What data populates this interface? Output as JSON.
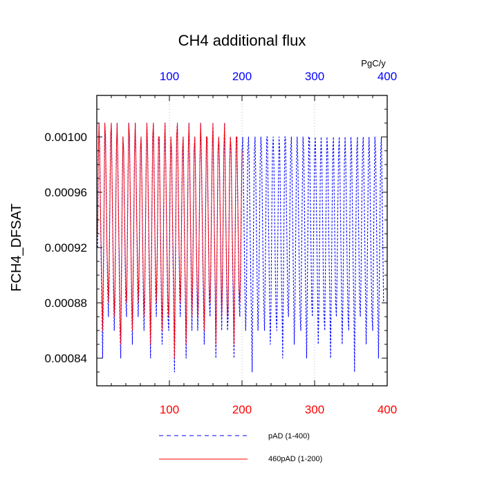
{
  "chart_data": {
    "type": "line",
    "title": "CH4 additional flux",
    "ylabel": "FCH4_DFSAT",
    "units": "PgC/y",
    "xlim": [
      0,
      400
    ],
    "ylim": [
      0.00082,
      0.00103
    ],
    "x_ticks_bottom": [
      "100",
      "200",
      "300",
      "400"
    ],
    "x_ticks_top": [
      "100",
      "200",
      "300",
      "400"
    ],
    "y_ticks": [
      "0.00084",
      "0.00088",
      "0.00092",
      "0.00096",
      "0.00100"
    ],
    "grid": "dotted vertical",
    "legend_placement": "below",
    "colors": {
      "bottom_axis": "#ff0000",
      "top_axis": "#0000ff",
      "series_pAD": "#0000ff",
      "series_460pAD": "#ff0000"
    },
    "series": [
      {
        "name": "pAD (1-400)",
        "style": "dashed",
        "color": "#0000ff",
        "x_start": 1,
        "x_step": 1,
        "values": [
          0.00092,
          0.00098,
          0.00101,
          0.00099,
          0.00095,
          0.00091,
          0.00088,
          0.00084,
          0.00089,
          0.00095,
          0.00101,
          0.001,
          0.00096,
          0.00092,
          0.00089,
          0.00087,
          0.0009,
          0.00095,
          0.001,
          0.00101,
          0.00097,
          0.00093,
          0.00089,
          0.00086,
          0.00088,
          0.00094,
          0.00099,
          0.00101,
          0.00098,
          0.00094,
          0.0009,
          0.00086,
          0.00084,
          0.0009,
          0.00096,
          0.001,
          0.00099,
          0.00095,
          0.00091,
          0.00088,
          0.00087,
          0.00092,
          0.00097,
          0.00101,
          0.001,
          0.00096,
          0.00092,
          0.00088,
          0.00085,
          0.00089,
          0.00094,
          0.00099,
          0.00101,
          0.00098,
          0.00094,
          0.0009,
          0.00087,
          0.00089,
          0.00094,
          0.00099,
          0.001,
          0.00097,
          0.00093,
          0.00089,
          0.00086,
          0.00088,
          0.00093,
          0.00098,
          0.00101,
          0.00099,
          0.00095,
          0.00091,
          0.00088,
          0.00084,
          0.00089,
          0.00095,
          0.001,
          0.00101,
          0.00097,
          0.00093,
          0.00089,
          0.00087,
          0.0009,
          0.00095,
          0.001,
          0.001,
          0.00096,
          0.00092,
          0.00088,
          0.00085,
          0.00088,
          0.00094,
          0.00099,
          0.00101,
          0.00098,
          0.00094,
          0.0009,
          0.00087,
          0.00086,
          0.00091,
          0.00097,
          0.001,
          0.00099,
          0.00095,
          0.00091,
          0.00088,
          0.00083,
          0.00089,
          0.00095,
          0.001,
          0.00101,
          0.00097,
          0.00093,
          0.00089,
          0.00087,
          0.0009,
          0.00095,
          0.00099,
          0.001,
          0.00096,
          0.00092,
          0.00088,
          0.00084,
          0.00088,
          0.00094,
          0.00099,
          0.00101,
          0.00098,
          0.00094,
          0.0009,
          0.00086,
          0.00089,
          0.00094,
          0.00099,
          0.001,
          0.00097,
          0.00093,
          0.00089,
          0.00086,
          0.00088,
          0.00093,
          0.00098,
          0.00101,
          0.00099,
          0.00095,
          0.00091,
          0.00088,
          0.00085,
          0.00089,
          0.00095,
          0.001,
          0.001,
          0.00096,
          0.00092,
          0.00088,
          0.00087,
          0.0009,
          0.00095,
          0.00099,
          0.00101,
          0.00097,
          0.00093,
          0.00089,
          0.00084,
          0.00088,
          0.00094,
          0.00099,
          0.001,
          0.00098,
          0.00094,
          0.0009,
          0.00086,
          0.00089,
          0.00094,
          0.00099,
          0.00101,
          0.00097,
          0.00093,
          0.00089,
          0.00086,
          0.00087,
          0.00093,
          0.00098,
          0.001,
          0.00099,
          0.00095,
          0.00091,
          0.00088,
          0.00084,
          0.00089,
          0.00095,
          0.001,
          0.001,
          0.00096,
          0.00092,
          0.00088,
          0.00087,
          0.0009,
          0.00095,
          0.00099,
          0.001,
          0.00097,
          0.00093,
          0.00089,
          0.00086,
          0.00088,
          0.00094,
          0.00099,
          0.001,
          0.00098,
          0.00094,
          0.0009,
          0.00087,
          0.00083,
          0.00089,
          0.00094,
          0.00099,
          0.001,
          0.00097,
          0.00093,
          0.00089,
          0.00086,
          0.00088,
          0.00093,
          0.00098,
          0.001,
          0.00099,
          0.00095,
          0.00091,
          0.00088,
          0.00086,
          0.0009,
          0.00095,
          0.001,
          0.001,
          0.00096,
          0.00092,
          0.00088,
          0.00085,
          0.00088,
          0.00094,
          0.00099,
          0.001,
          0.00098,
          0.00094,
          0.0009,
          0.00087,
          0.00086,
          0.00091,
          0.00096,
          0.001,
          0.00099,
          0.00095,
          0.00091,
          0.00088,
          0.00084,
          0.00089,
          0.00095,
          0.001,
          0.001,
          0.00096,
          0.00092,
          0.00088,
          0.00087,
          0.0009,
          0.00095,
          0.00099,
          0.001,
          0.00097,
          0.00093,
          0.00089,
          0.00085,
          0.00088,
          0.00093,
          0.00098,
          0.001,
          0.00098,
          0.00094,
          0.0009,
          0.00087,
          0.00086,
          0.00091,
          0.00096,
          0.001,
          0.00099,
          0.00095,
          0.00091,
          0.00088,
          0.00084,
          0.00089,
          0.00095,
          0.001,
          0.001,
          0.00096,
          0.00092,
          0.00088,
          0.00087,
          0.0009,
          0.00095,
          0.00099,
          0.001,
          0.00097,
          0.00093,
          0.00089,
          0.00085,
          0.00088,
          0.00093,
          0.00098,
          0.001,
          0.00098,
          0.00094,
          0.0009,
          0.00087,
          0.00086,
          0.00091,
          0.00096,
          0.001,
          0.00099,
          0.00095,
          0.00091,
          0.00088,
          0.00084,
          0.00089,
          0.00094,
          0.00099,
          0.001,
          0.00096,
          0.00092,
          0.00088,
          0.00087,
          0.0009,
          0.00095,
          0.00099,
          0.001,
          0.00097,
          0.00093,
          0.00089,
          0.00085,
          0.00088,
          0.00093,
          0.00098,
          0.001,
          0.00098,
          0.00094,
          0.0009,
          0.00087,
          0.00086,
          0.00091,
          0.00096,
          0.001,
          0.00099,
          0.00095,
          0.00091,
          0.00088,
          0.00083,
          0.00089,
          0.00094,
          0.00099,
          0.001,
          0.00096,
          0.00092,
          0.00088,
          0.00087,
          0.0009,
          0.00095,
          0.00099,
          0.001,
          0.00097,
          0.00093,
          0.00089,
          0.00085,
          0.00088,
          0.00093,
          0.00098,
          0.001,
          0.00098,
          0.00094,
          0.0009,
          0.00087,
          0.00086,
          0.00091,
          0.00096,
          0.001,
          0.00099,
          0.00095,
          0.00091,
          0.00088,
          0.00084,
          0.00089,
          0.00094,
          0.00099,
          0.001,
          0.00096,
          0.00092,
          0.00088
        ]
      },
      {
        "name": "460pAD (1-200)",
        "style": "solid",
        "color": "#ff0000",
        "x_start": 1,
        "x_step": 1,
        "values": [
          0.00093,
          0.00098,
          0.00101,
          0.00099,
          0.00095,
          0.00092,
          0.00089,
          0.00086,
          0.0009,
          0.00095,
          0.00101,
          0.001,
          0.00096,
          0.00092,
          0.0009,
          0.00088,
          0.00091,
          0.00095,
          0.001,
          0.00101,
          0.00097,
          0.00093,
          0.0009,
          0.00087,
          0.00089,
          0.00094,
          0.00099,
          0.00101,
          0.00098,
          0.00094,
          0.00091,
          0.00087,
          0.00085,
          0.0009,
          0.00096,
          0.001,
          0.00099,
          0.00095,
          0.00092,
          0.00089,
          0.00088,
          0.00092,
          0.00097,
          0.00101,
          0.001,
          0.00096,
          0.00092,
          0.00089,
          0.00086,
          0.0009,
          0.00094,
          0.00099,
          0.00101,
          0.00098,
          0.00094,
          0.00091,
          0.00088,
          0.0009,
          0.00094,
          0.00099,
          0.001,
          0.00097,
          0.00093,
          0.0009,
          0.00087,
          0.00089,
          0.00093,
          0.00098,
          0.00101,
          0.00099,
          0.00095,
          0.00092,
          0.00089,
          0.00085,
          0.0009,
          0.00095,
          0.001,
          0.00101,
          0.00097,
          0.00093,
          0.0009,
          0.00088,
          0.00091,
          0.00095,
          0.001,
          0.001,
          0.00096,
          0.00092,
          0.00089,
          0.00086,
          0.00089,
          0.00094,
          0.00099,
          0.00101,
          0.00098,
          0.00094,
          0.00091,
          0.00088,
          0.00087,
          0.00091,
          0.00097,
          0.001,
          0.00099,
          0.00095,
          0.00092,
          0.00089,
          0.00084,
          0.0009,
          0.00095,
          0.001,
          0.00101,
          0.00097,
          0.00093,
          0.0009,
          0.00088,
          0.00091,
          0.00095,
          0.00099,
          0.001,
          0.00096,
          0.00092,
          0.00089,
          0.00085,
          0.00089,
          0.00094,
          0.00099,
          0.00101,
          0.00098,
          0.00094,
          0.00091,
          0.00087,
          0.0009,
          0.00094,
          0.00099,
          0.001,
          0.00097,
          0.00093,
          0.0009,
          0.00087,
          0.00089,
          0.00093,
          0.00098,
          0.00101,
          0.00099,
          0.00095,
          0.00092,
          0.00089,
          0.00086,
          0.0009,
          0.00095,
          0.001,
          0.001,
          0.00096,
          0.00092,
          0.00089,
          0.00088,
          0.00091,
          0.00095,
          0.00099,
          0.00101,
          0.00097,
          0.00093,
          0.0009,
          0.00085,
          0.00089,
          0.00094,
          0.00099,
          0.001,
          0.00098,
          0.00094,
          0.00091,
          0.00087,
          0.0009,
          0.00094,
          0.00099,
          0.00101,
          0.00097,
          0.00093,
          0.0009,
          0.00087,
          0.00088,
          0.00093,
          0.00098,
          0.001,
          0.00099,
          0.00095,
          0.00092,
          0.00089,
          0.00085,
          0.0009,
          0.00095,
          0.001,
          0.001,
          0.00096,
          0.00092,
          0.00089,
          0.00088,
          0.00091,
          0.00095,
          0.00099
        ]
      }
    ]
  }
}
